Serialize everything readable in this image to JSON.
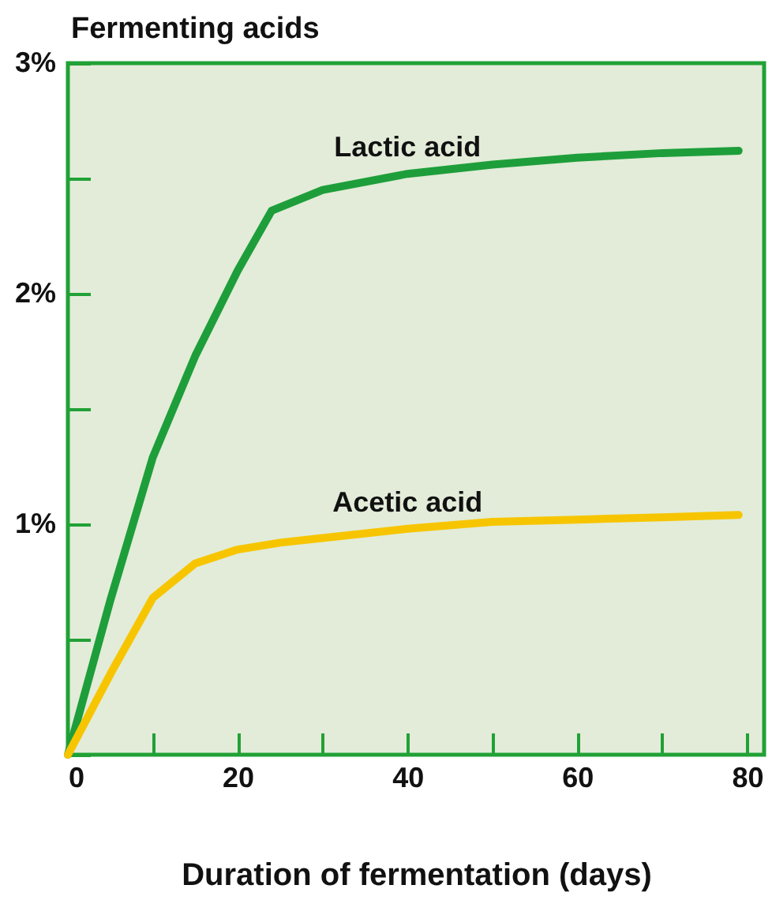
{
  "chart_data": {
    "type": "line",
    "title": "Fermenting acids",
    "xlabel": "Duration of fermentation (days)",
    "xlim": [
      0,
      82
    ],
    "ylim": [
      0,
      3
    ],
    "xticks": [
      0,
      {
        "value": 10,
        "label": null
      },
      20,
      {
        "value": 30,
        "label": null
      },
      40,
      {
        "value": 50,
        "label": null
      },
      60,
      {
        "value": 70,
        "label": null
      },
      80
    ],
    "yticks": [
      {
        "value": 0,
        "label": null
      },
      {
        "value": 0.5,
        "label": null
      },
      {
        "value": 1,
        "label": "1%"
      },
      {
        "value": 1.5,
        "label": null
      },
      {
        "value": 2,
        "label": "2%"
      },
      {
        "value": 2.5,
        "label": null
      },
      {
        "value": 3,
        "label": "3%"
      }
    ],
    "grid": false,
    "legend": false,
    "marker": "none",
    "line_style": "solid",
    "series": [
      {
        "name": "Lactic acid",
        "color": "#1e9e3a",
        "x": [
          0,
          5,
          10,
          15,
          20,
          24,
          30,
          40,
          50,
          60,
          70,
          79
        ],
        "values": [
          0,
          0.67,
          1.29,
          1.73,
          2.1,
          2.36,
          2.45,
          2.52,
          2.56,
          2.59,
          2.61,
          2.62
        ]
      },
      {
        "name": "Acetic acid",
        "color": "#f7c500",
        "x": [
          0,
          5,
          10,
          15,
          20,
          25,
          30,
          40,
          50,
          60,
          70,
          79
        ],
        "values": [
          0,
          0.35,
          0.68,
          0.83,
          0.89,
          0.92,
          0.94,
          0.98,
          1.01,
          1.02,
          1.03,
          1.04
        ]
      }
    ]
  }
}
